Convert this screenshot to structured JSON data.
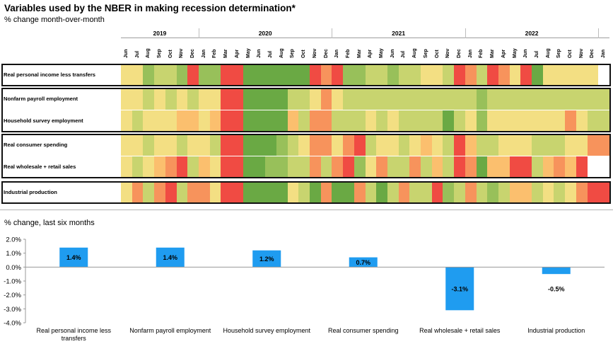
{
  "title": "Variables used by the NBER in making recession determination*",
  "subtitle_top": "% change month-over-month",
  "subtitle_bottom": "% change, last six months",
  "colors": {
    "red": "#f04b43",
    "orange": "#f7935c",
    "lightorange": "#fbbf6e",
    "yellow": "#f3df83",
    "lightgreen": "#c8d46f",
    "green": "#98c05a",
    "darkgreen": "#6aa944",
    "accent_bar": "#1f9cf0"
  },
  "chart_data": [
    {
      "type": "heatmap",
      "title": "Variables used by the NBER in making recession determination*",
      "subtitle": "% change month-over-month",
      "years": [
        {
          "label": "2019",
          "span": [
            0,
            7
          ]
        },
        {
          "label": "2020",
          "span": [
            7,
            19
          ]
        },
        {
          "label": "2021",
          "span": [
            19,
            31
          ]
        },
        {
          "label": "2022",
          "span": [
            31,
            43
          ]
        }
      ],
      "months": [
        "Jun",
        "Jul",
        "Aug",
        "Sep",
        "Oct",
        "Nov",
        "Dec",
        "Jan",
        "Feb",
        "Mar",
        "Apr",
        "May",
        "Jun",
        "Jul",
        "Aug",
        "Sep",
        "Oct",
        "Nov",
        "Dec",
        "Jan",
        "Feb",
        "Mar",
        "Apr",
        "May",
        "Jun",
        "Jul",
        "Aug",
        "Sep",
        "Oct",
        "Nov",
        "Dec",
        "Jan",
        "Feb",
        "Mar",
        "Apr",
        "May",
        "Jun",
        "Jul",
        "Aug",
        "Sep",
        "Oct",
        "Nov",
        "Dec",
        "Jan"
      ],
      "rows": [
        {
          "label": "Real personal income less transfers",
          "values": [
            "Y",
            "Y",
            "G",
            "L",
            "L",
            "G",
            "R",
            "G",
            "G",
            "R",
            "R",
            "D",
            "D",
            "D",
            "D",
            "D",
            "D",
            "R",
            "O",
            "R",
            "G",
            "G",
            "L",
            "L",
            "G",
            "L",
            "L",
            "Y",
            "Y",
            "L",
            "R",
            "O",
            "L",
            "R",
            "O",
            "Y",
            "R",
            "D",
            "Y",
            "Y",
            "Y",
            "Y",
            "Y",
            "W"
          ]
        },
        {
          "label": "Nonfarm payroll employment",
          "values": [
            "Y",
            "Y",
            "L",
            "Y",
            "L",
            "Y",
            "L",
            "Y",
            "Y",
            "R",
            "R",
            "D",
            "D",
            "D",
            "D",
            "L",
            "L",
            "Y",
            "O",
            "Y",
            "L",
            "L",
            "L",
            "L",
            "L",
            "L",
            "L",
            "L",
            "L",
            "L",
            "L",
            "L",
            "G",
            "L",
            "L",
            "L",
            "L",
            "L",
            "L",
            "L",
            "L",
            "L",
            "L",
            "L"
          ]
        },
        {
          "label": "Household survey employment",
          "values": [
            "Y",
            "L",
            "Y",
            "Y",
            "Y",
            "A",
            "A",
            "Y",
            "A",
            "R",
            "R",
            "D",
            "D",
            "D",
            "D",
            "A",
            "L",
            "O",
            "O",
            "L",
            "L",
            "L",
            "Y",
            "L",
            "Y",
            "L",
            "L",
            "L",
            "L",
            "D",
            "L",
            "Y",
            "G",
            "Y",
            "Y",
            "Y",
            "Y",
            "Y",
            "Y",
            "Y",
            "O",
            "Y",
            "L",
            "L"
          ]
        },
        {
          "label": "Real consumer spending",
          "values": [
            "Y",
            "Y",
            "L",
            "Y",
            "Y",
            "L",
            "Y",
            "Y",
            "L",
            "R",
            "R",
            "D",
            "D",
            "D",
            "G",
            "L",
            "Y",
            "O",
            "O",
            "Y",
            "O",
            "R",
            "L",
            "Y",
            "Y",
            "L",
            "Y",
            "A",
            "Y",
            "L",
            "R",
            "A",
            "L",
            "L",
            "Y",
            "Y",
            "Y",
            "L",
            "L",
            "L",
            "Y",
            "Y",
            "O",
            "O"
          ]
        },
        {
          "label": "Real wholesale + retail sales",
          "values": [
            "Y",
            "L",
            "Y",
            "A",
            "O",
            "R",
            "L",
            "A",
            "Y",
            "R",
            "R",
            "D",
            "D",
            "G",
            "G",
            "L",
            "L",
            "O",
            "L",
            "O",
            "R",
            "G",
            "Y",
            "O",
            "L",
            "L",
            "O",
            "L",
            "A",
            "L",
            "R",
            "O",
            "D",
            "A",
            "A",
            "R",
            "R",
            "L",
            "A",
            "O",
            "A",
            "R",
            "W",
            "W"
          ]
        },
        {
          "label": "Industrial production",
          "values": [
            "Y",
            "O",
            "L",
            "O",
            "R",
            "L",
            "O",
            "O",
            "Y",
            "R",
            "R",
            "D",
            "D",
            "D",
            "D",
            "Y",
            "L",
            "D",
            "O",
            "D",
            "D",
            "O",
            "L",
            "D",
            "L",
            "O",
            "L",
            "L",
            "R",
            "G",
            "L",
            "O",
            "L",
            "G",
            "L",
            "A",
            "A",
            "L",
            "Y",
            "L",
            "Y",
            "O",
            "R",
            "R"
          ]
        }
      ],
      "legend_codes": {
        "R": "red",
        "O": "orange",
        "A": "lightorange",
        "Y": "yellow",
        "L": "lightgreen",
        "G": "green",
        "D": "darkgreen",
        "W": "white"
      }
    },
    {
      "type": "bar",
      "ylabel": "% change, last six months",
      "categories": [
        "Real personal income less transfers",
        "Nonfarm payroll employment",
        "Household survey employment",
        "Real consumer spending",
        "Real wholesale + retail sales",
        "Industrial production"
      ],
      "values": [
        1.4,
        1.4,
        1.2,
        0.7,
        -3.1,
        -0.5
      ],
      "data_labels": [
        "1.4%",
        "1.4%",
        "1.2%",
        "0.7%",
        "-3.1%",
        "-0.5%"
      ],
      "yticks": [
        "2.0%",
        "1.0%",
        "0.0%",
        "-1.0%",
        "-2.0%",
        "-3.0%",
        "-4.0%"
      ],
      "ytick_values": [
        2,
        1,
        0,
        -1,
        -2,
        -3,
        -4
      ],
      "ylim": [
        -4,
        2
      ],
      "grid": false
    }
  ]
}
